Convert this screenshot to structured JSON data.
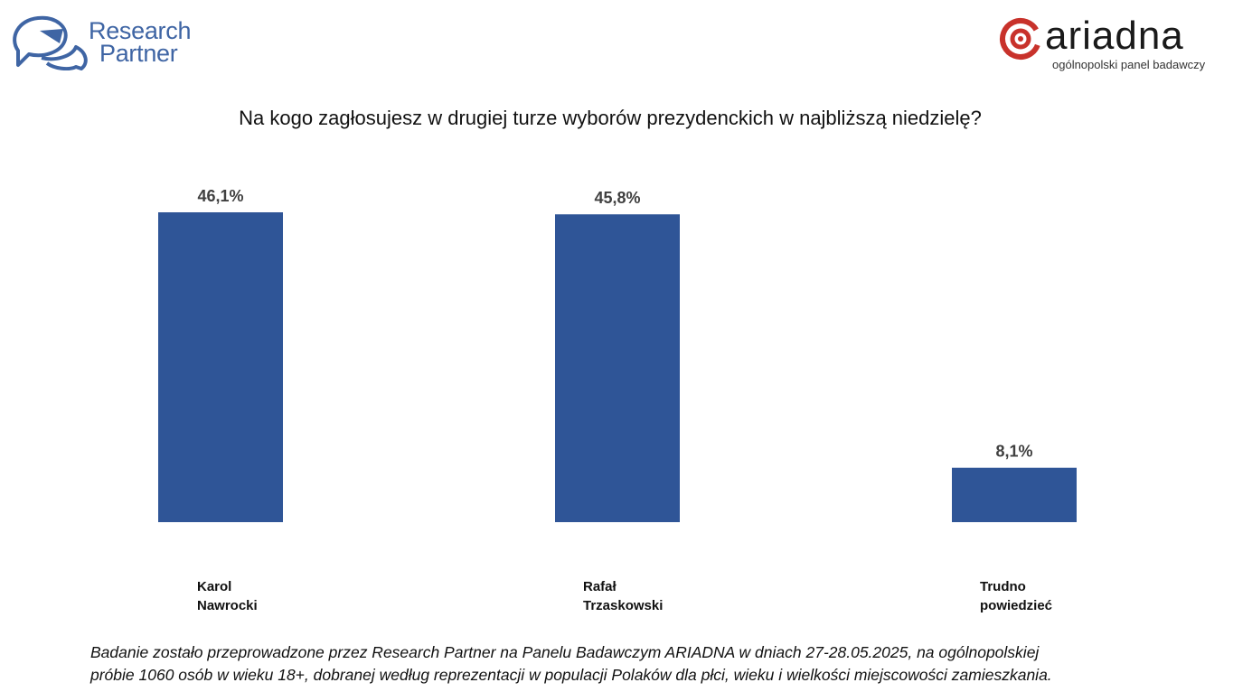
{
  "logos": {
    "left": {
      "line1": "Research",
      "line2": "Partner",
      "color": "#3f65a4"
    },
    "right": {
      "name": "ARIADNA",
      "display": "ariadna",
      "tagline": "ogólnopolski panel badawczy",
      "accent": "#c8322b"
    }
  },
  "chart_data": {
    "type": "bar",
    "title": "Na kogo zagłosujesz w drugiej turze wyborów prezydenckich w najbliższą niedzielę?",
    "categories": [
      "Karol Nawrocki",
      "Rafał Trzaskowski",
      "Trudno powiedzieć"
    ],
    "category_lines": [
      [
        "Karol",
        "Nawrocki"
      ],
      [
        "Rafał",
        "Trzaskowski"
      ],
      [
        "Trudno",
        "powiedzieć"
      ]
    ],
    "values": [
      46.1,
      45.8,
      8.1
    ],
    "value_labels": [
      "46,1%",
      "45,8%",
      "8,1%"
    ],
    "unit": "%",
    "bar_color": "#2f5597",
    "xlabel": "",
    "ylabel": "",
    "ylim": [
      0,
      50
    ],
    "grid": false,
    "legend": "none"
  },
  "footnote": {
    "line1": "Badanie zostało przeprowadzone przez Research Partner na Panelu Badawczym ARIADNA w dniach 27-28.05.2025, na ogólnopolskiej",
    "line2": "próbie 1060 osób w wieku 18+, dobranej według reprezentacji w populacji Polaków dla płci, wieku i wielkości miejscowości zamieszkania."
  }
}
